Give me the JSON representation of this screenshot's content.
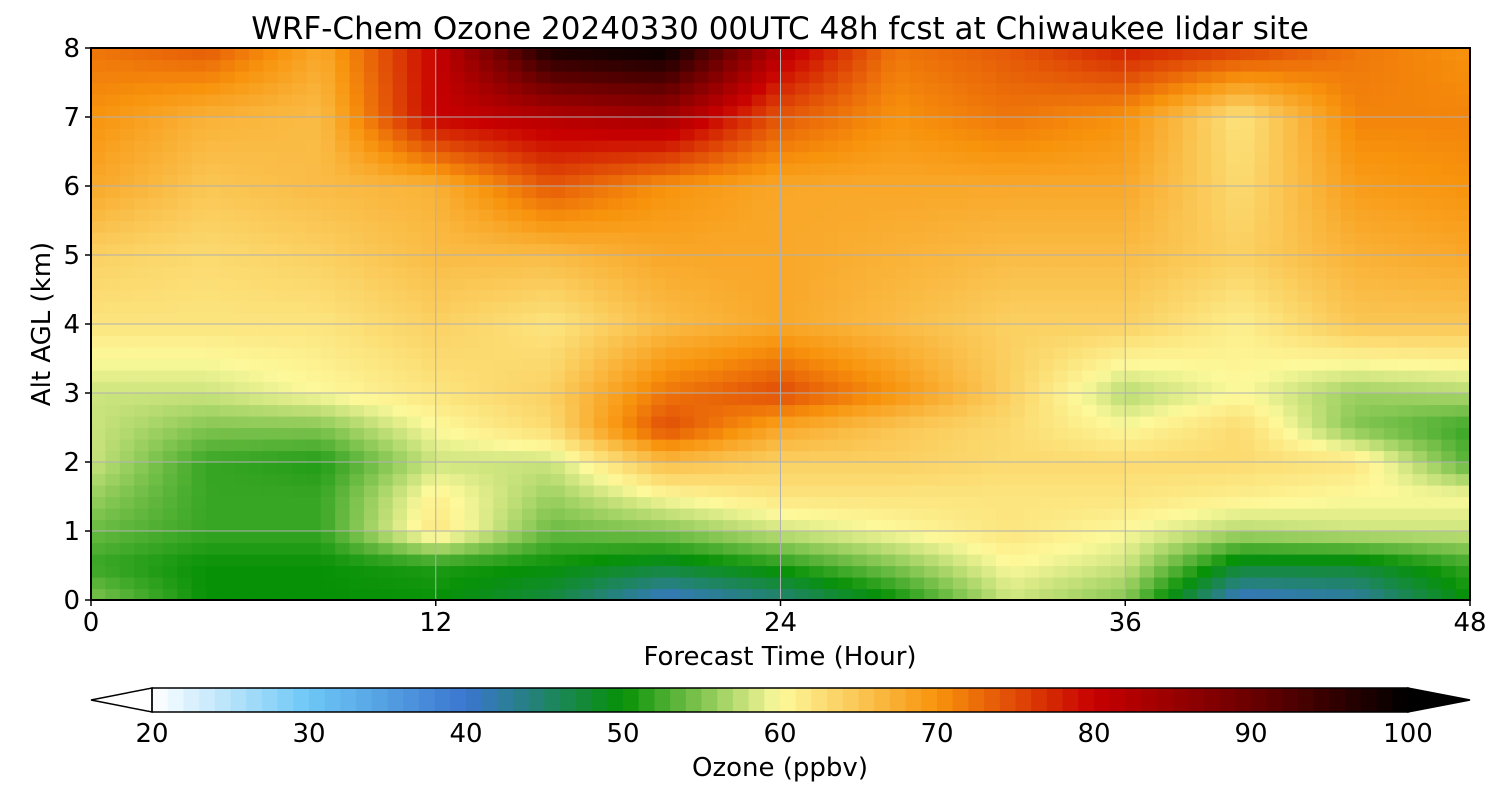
{
  "chart_data": {
    "type": "heatmap",
    "title": "WRF-Chem Ozone  20240330 00UTC 48h fcst at Chiwaukee lidar site",
    "xlabel": "Forecast Time (Hour)",
    "ylabel": "Alt AGL (km)",
    "xlim": [
      0,
      48
    ],
    "ylim": [
      0,
      8
    ],
    "xticks": [
      0,
      12,
      24,
      36,
      48
    ],
    "yticks": [
      0,
      1,
      2,
      3,
      4,
      5,
      6,
      7,
      8
    ],
    "grid": true,
    "colorbar": {
      "label": "Ozone  (ppbv)",
      "range": [
        20,
        100
      ],
      "ticks": [
        20,
        30,
        40,
        50,
        60,
        70,
        80,
        90,
        100
      ],
      "extend": "both",
      "orientation": "horizontal",
      "colors": {
        "20": "#ffffff",
        "30": "#6cc7f5",
        "40": "#3a76cf",
        "50": "#079107",
        "60": "#fdf99b",
        "70": "#f8930c",
        "80": "#c80000",
        "90": "#6a0000",
        "100": "#000000"
      }
    },
    "hours": [
      0,
      4,
      8,
      12,
      16,
      20,
      24,
      28,
      32,
      36,
      40,
      44,
      48
    ],
    "altitudes_km": [
      0,
      0.5,
      1,
      1.5,
      2,
      2.5,
      3,
      4,
      5,
      6,
      7,
      8
    ],
    "ozone_ppbv": [
      [
        55,
        50,
        50,
        50,
        47,
        40,
        44,
        50,
        58,
        55,
        40,
        42,
        50
      ],
      [
        52,
        50,
        50,
        51,
        50,
        48,
        51,
        55,
        60,
        58,
        48,
        48,
        52
      ],
      [
        54,
        52,
        52,
        62,
        54,
        55,
        58,
        60,
        62,
        60,
        57,
        58,
        58
      ],
      [
        56,
        52,
        52,
        61,
        56,
        60,
        62,
        62,
        62,
        62,
        61,
        60,
        60
      ],
      [
        58,
        52,
        51,
        58,
        58,
        66,
        64,
        64,
        63,
        63,
        63,
        62,
        53
      ],
      [
        58,
        55,
        55,
        60,
        63,
        75,
        68,
        65,
        63,
        60,
        63,
        55,
        52
      ],
      [
        58,
        58,
        60,
        62,
        64,
        72,
        75,
        70,
        64,
        57,
        60,
        56,
        57
      ],
      [
        62,
        62,
        62,
        64,
        62,
        66,
        68,
        66,
        64,
        64,
        61,
        65,
        65
      ],
      [
        64,
        63,
        64,
        66,
        66,
        68,
        68,
        67,
        66,
        66,
        64,
        67,
        68
      ],
      [
        68,
        65,
        66,
        67,
        74,
        70,
        68,
        68,
        68,
        68,
        63,
        69,
        70
      ],
      [
        70,
        67,
        66,
        80,
        82,
        84,
        74,
        70,
        72,
        70,
        62,
        71,
        71
      ],
      [
        72,
        74,
        68,
        80,
        98,
        100,
        82,
        72,
        74,
        78,
        76,
        72,
        70
      ]
    ]
  }
}
